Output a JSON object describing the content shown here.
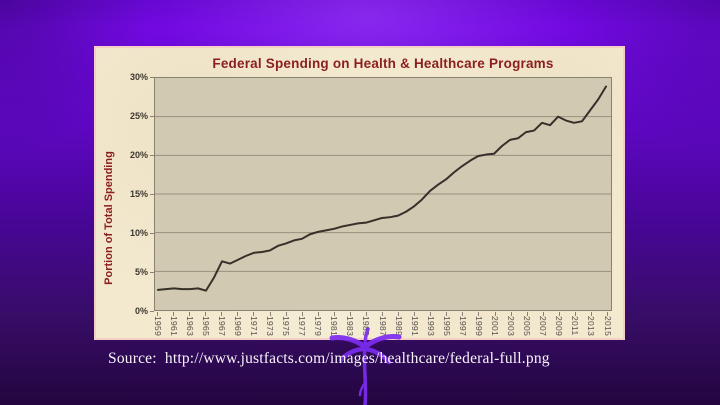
{
  "colors": {
    "slide_top": "#7209e2",
    "slide_bottom": "#24053f",
    "title_red": "#8b1e1e",
    "chart_bg": "#f3e9cf",
    "plot_bg": "#d2c9b2",
    "gridline": "#98907e",
    "plot_border": "#8a8270",
    "line": "#37302a",
    "tick_text": "#3c372f",
    "x_tick_text": "#55504a",
    "source_text": "#f8f4fc",
    "ornament": "#7d2cf0"
  },
  "source": {
    "text": "Source:  http://www.justfacts.com/images/healthcare/federal-full.png"
  },
  "chart_data": {
    "type": "line",
    "title": "Federal Spending on Health & Healthcare Programs",
    "xlabel": "",
    "ylabel": "Portion of Total Spending",
    "series_name": "Portion of Total Spending",
    "x": [
      1959,
      1960,
      1961,
      1962,
      1963,
      1964,
      1965,
      1966,
      1967,
      1968,
      1969,
      1970,
      1971,
      1972,
      1973,
      1974,
      1975,
      1976,
      1977,
      1978,
      1979,
      1980,
      1981,
      1982,
      1983,
      1984,
      1985,
      1986,
      1987,
      1988,
      1989,
      1990,
      1991,
      1992,
      1993,
      1994,
      1995,
      1996,
      1997,
      1998,
      1999,
      2000,
      2001,
      2002,
      2003,
      2004,
      2005,
      2006,
      2007,
      2008,
      2009,
      2010,
      2011,
      2012,
      2013,
      2014,
      2015
    ],
    "values": [
      2.6,
      2.7,
      2.8,
      2.7,
      2.7,
      2.8,
      2.5,
      4.2,
      6.3,
      6.0,
      6.5,
      7.0,
      7.4,
      7.5,
      7.7,
      8.3,
      8.6,
      9.0,
      9.2,
      9.8,
      10.1,
      10.3,
      10.5,
      10.8,
      11.0,
      11.2,
      11.3,
      11.6,
      11.9,
      12.0,
      12.2,
      12.7,
      13.4,
      14.3,
      15.4,
      16.2,
      16.9,
      17.8,
      18.6,
      19.3,
      19.9,
      20.1,
      20.2,
      21.2,
      22.0,
      22.2,
      23.0,
      23.2,
      24.2,
      23.9,
      25.0,
      24.5,
      24.2,
      24.4,
      25.8,
      27.2,
      28.9
    ],
    "ylim": [
      0,
      30
    ],
    "y_tick_step": 5,
    "y_tick_labels": [
      "0%",
      "5%",
      "10%",
      "15%",
      "20%",
      "25%",
      "30%"
    ],
    "x_tick_labels": [
      1959,
      1961,
      1963,
      1965,
      1967,
      1969,
      1971,
      1973,
      1975,
      1977,
      1979,
      1981,
      1983,
      1985,
      1987,
      1989,
      1991,
      1993,
      1995,
      1997,
      1999,
      2001,
      2003,
      2005,
      2007,
      2009,
      2011,
      2013,
      2015
    ],
    "grid": true,
    "legend": false
  }
}
